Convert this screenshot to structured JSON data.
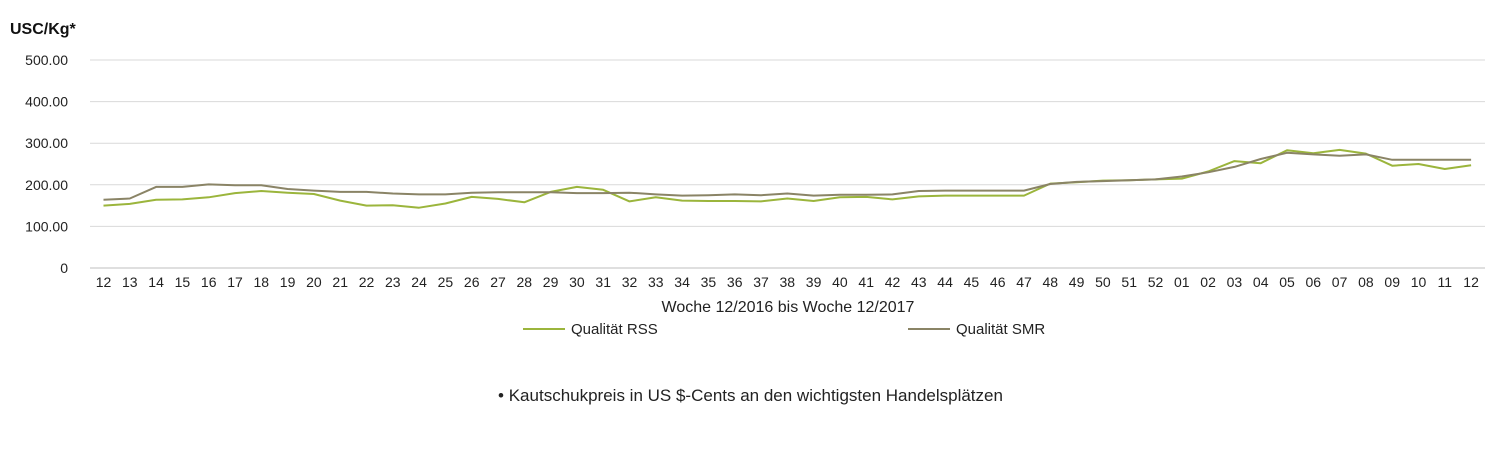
{
  "caption": "• Kautschukpreis in US $-Cents an den wichtigsten Handelsplätzen",
  "chart_data": {
    "type": "line",
    "ylabel": "USC/Kg*",
    "xlabel": "Woche 12/2016 bis Woche 12/2017",
    "ylim": [
      0,
      500
    ],
    "yticks": [
      0,
      100,
      200,
      300,
      400,
      500
    ],
    "ytick_labels": [
      "0",
      "100.00",
      "200.00",
      "300.00",
      "400.00",
      "500.00"
    ],
    "grid": true,
    "legend": "bottom",
    "categories": [
      "12",
      "13",
      "14",
      "15",
      "16",
      "17",
      "18",
      "19",
      "20",
      "21",
      "22",
      "23",
      "24",
      "25",
      "26",
      "27",
      "28",
      "29",
      "30",
      "31",
      "32",
      "33",
      "34",
      "35",
      "36",
      "37",
      "38",
      "39",
      "40",
      "41",
      "42",
      "43",
      "44",
      "45",
      "46",
      "47",
      "48",
      "49",
      "50",
      "51",
      "52",
      "01",
      "02",
      "03",
      "04",
      "05",
      "06",
      "07",
      "08",
      "09",
      "10",
      "11",
      "12"
    ],
    "series": [
      {
        "name": "Qualität RSS",
        "color": "#9bb53c",
        "values": [
          150,
          154,
          164,
          165,
          170,
          180,
          185,
          181,
          178,
          162,
          150,
          151,
          145,
          155,
          171,
          166,
          158,
          183,
          195,
          188,
          160,
          170,
          162,
          161,
          161,
          160,
          167,
          161,
          170,
          171,
          165,
          172,
          174,
          174,
          174,
          174,
          203,
          206,
          210,
          211,
          213,
          215,
          232,
          257,
          252,
          283,
          276,
          284,
          275,
          246,
          250,
          238,
          247
        ]
      },
      {
        "name": "Qualität SMR",
        "color": "#8a8466",
        "values": [
          164,
          167,
          195,
          195,
          201,
          199,
          199,
          190,
          186,
          183,
          183,
          179,
          177,
          177,
          181,
          182,
          182,
          182,
          180,
          180,
          181,
          177,
          174,
          175,
          177,
          175,
          179,
          174,
          176,
          176,
          177,
          185,
          186,
          186,
          186,
          186,
          202,
          207,
          209,
          211,
          213,
          220,
          230,
          243,
          262,
          277,
          273,
          270,
          273,
          260,
          260,
          260,
          260
        ]
      }
    ]
  }
}
